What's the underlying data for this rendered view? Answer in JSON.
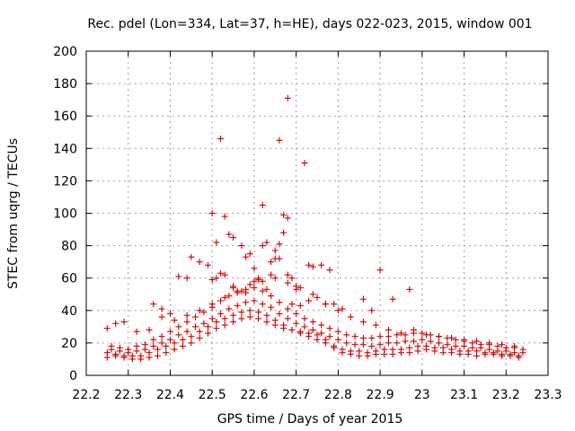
{
  "chart_data": {
    "type": "scatter",
    "title": "Rec. pdel (Lon=334, Lat=37, h=HE), days 022-023, 2015, window 001",
    "xlabel": "GPS time / Days of year 2015",
    "ylabel": "STEC from uqrg / TECUs",
    "xlim": [
      22.2,
      23.3
    ],
    "ylim": [
      0,
      200
    ],
    "xticks": [
      "22.2",
      "22.3",
      "22.4",
      "22.5",
      "22.6",
      "22.7",
      "22.8",
      "22.9",
      "23",
      "23.1",
      "23.2",
      "23.3"
    ],
    "yticks": [
      "0",
      "20",
      "40",
      "60",
      "80",
      "100",
      "120",
      "140",
      "160",
      "180",
      "200"
    ],
    "grid": true,
    "marker": "+",
    "color": "#cc0000",
    "series": [
      {
        "name": "STEC",
        "x": [
          22.25,
          22.27,
          22.29,
          22.31,
          22.33,
          22.35,
          22.37,
          22.39,
          22.41,
          22.43,
          22.45,
          22.47,
          22.49,
          22.51,
          22.53,
          22.55,
          22.57,
          22.59,
          22.61,
          22.63,
          22.65,
          22.67,
          22.69,
          22.71,
          22.73,
          22.75,
          22.77,
          22.79,
          22.81,
          22.83,
          22.85,
          22.87,
          22.89,
          22.91,
          22.93,
          22.95,
          22.97,
          22.99,
          23.01,
          23.03,
          23.05,
          23.07,
          23.09,
          23.11,
          23.13,
          23.15,
          23.17,
          23.19,
          23.21,
          23.23,
          22.25,
          22.27,
          22.29,
          22.31,
          22.33,
          22.35,
          22.37,
          22.39,
          22.41,
          22.43,
          22.45,
          22.47,
          22.49,
          22.51,
          22.53,
          22.55,
          22.57,
          22.59,
          22.61,
          22.63,
          22.65,
          22.67,
          22.69,
          22.71,
          22.73,
          22.75,
          22.77,
          22.79,
          22.81,
          22.83,
          22.85,
          22.87,
          22.89,
          22.91,
          22.93,
          22.95,
          22.97,
          22.99,
          23.01,
          23.03,
          23.05,
          23.07,
          23.09,
          23.11,
          23.13,
          23.15,
          23.17,
          23.19,
          23.21,
          23.23,
          22.26,
          22.28,
          22.3,
          22.32,
          22.34,
          22.36,
          22.38,
          22.4,
          22.42,
          22.44,
          22.46,
          22.48,
          22.5,
          22.52,
          22.54,
          22.56,
          22.58,
          22.6,
          22.62,
          22.64,
          22.66,
          22.68,
          22.7,
          22.72,
          22.74,
          22.76,
          22.78,
          22.8,
          22.82,
          22.84,
          22.86,
          22.88,
          22.9,
          22.92,
          22.94,
          22.96,
          22.98,
          23.0,
          23.02,
          23.04,
          23.06,
          23.08,
          23.1,
          23.12,
          23.14,
          23.16,
          23.18,
          23.2,
          23.22,
          23.24,
          22.26,
          22.28,
          22.3,
          22.32,
          22.34,
          22.36,
          22.38,
          22.4,
          22.42,
          22.44,
          22.46,
          22.48,
          22.5,
          22.52,
          22.54,
          22.56,
          22.58,
          22.6,
          22.62,
          22.64,
          22.66,
          22.68,
          22.7,
          22.72,
          22.74,
          22.76,
          22.78,
          22.8,
          22.82,
          22.84,
          22.86,
          22.88,
          22.9,
          22.92,
          22.94,
          22.96,
          22.98,
          23.0,
          23.02,
          23.04,
          23.06,
          23.08,
          23.1,
          23.12,
          23.14,
          23.16,
          23.18,
          23.2,
          23.22,
          23.24,
          22.25,
          22.27,
          22.29,
          22.32,
          22.35,
          22.38,
          22.41,
          22.44,
          22.47,
          22.5,
          22.53,
          22.56,
          22.59,
          22.62,
          22.65,
          22.68,
          22.71,
          22.74,
          22.77,
          22.8,
          22.83,
          22.86,
          22.89,
          22.92,
          22.95,
          22.98,
          23.01,
          23.04,
          23.07,
          23.1,
          23.13,
          23.16,
          23.19,
          23.22,
          22.52,
          22.53,
          22.55,
          22.58,
          22.6,
          22.62,
          22.64,
          22.65,
          22.66,
          22.67,
          22.68,
          22.69,
          22.7,
          22.72,
          22.74,
          22.76,
          22.78,
          22.5,
          22.51,
          22.54,
          22.57,
          22.59,
          22.61,
          22.63,
          22.66,
          22.68,
          22.7,
          22.45,
          22.47,
          22.49,
          22.42,
          22.44,
          22.9,
          22.93,
          22.97,
          22.86,
          22.88,
          22.36,
          22.38,
          22.4,
          22.53,
          22.62,
          22.66,
          22.68,
          22.73,
          22.51,
          22.61,
          22.65,
          22.67,
          22.5,
          22.52,
          22.55,
          22.58,
          22.63,
          22.69,
          22.75,
          22.77,
          22.79,
          22.81,
          22.55,
          22.57,
          22.6,
          22.64,
          22.71,
          22.73
        ],
        "y": [
          11,
          12,
          11,
          10,
          10,
          11,
          12,
          14,
          16,
          18,
          20,
          23,
          26,
          29,
          31,
          33,
          35,
          36,
          35,
          33,
          31,
          29,
          28,
          27,
          26,
          25,
          22,
          18,
          14,
          13,
          12,
          12,
          13,
          13,
          13,
          14,
          14,
          15,
          16,
          15,
          14,
          14,
          13,
          13,
          12,
          13,
          13,
          12,
          12,
          11,
          14,
          13,
          12,
          12,
          12,
          14,
          16,
          18,
          20,
          22,
          24,
          27,
          30,
          33,
          35,
          37,
          39,
          40,
          39,
          37,
          34,
          31,
          28,
          26,
          24,
          22,
          20,
          17,
          16,
          15,
          15,
          14,
          15,
          16,
          16,
          16,
          17,
          18,
          18,
          17,
          17,
          16,
          15,
          15,
          15,
          14,
          14,
          13,
          13,
          12,
          16,
          15,
          14,
          15,
          16,
          18,
          20,
          22,
          25,
          27,
          30,
          32,
          35,
          38,
          41,
          43,
          45,
          46,
          44,
          42,
          38,
          35,
          32,
          30,
          28,
          26,
          24,
          22,
          20,
          19,
          19,
          18,
          19,
          20,
          20,
          21,
          21,
          22,
          21,
          20,
          19,
          18,
          18,
          17,
          17,
          16,
          15,
          15,
          14,
          14,
          18,
          17,
          16,
          18,
          19,
          22,
          24,
          27,
          30,
          33,
          36,
          39,
          42,
          46,
          49,
          51,
          53,
          54,
          52,
          49,
          45,
          41,
          38,
          35,
          33,
          31,
          29,
          27,
          25,
          24,
          23,
          23,
          24,
          24,
          25,
          25,
          26,
          26,
          25,
          24,
          23,
          22,
          21,
          20,
          19,
          19,
          18,
          17,
          17,
          16,
          29,
          32,
          33,
          27,
          28,
          36,
          34,
          37,
          40,
          44,
          48,
          52,
          56,
          58,
          60,
          57,
          54,
          50,
          44,
          40,
          36,
          33,
          31,
          28,
          26,
          28,
          25,
          24,
          23,
          22,
          21,
          20,
          19,
          18,
          146,
          62,
          85,
          73,
          66,
          105,
          70,
          72,
          145,
          99,
          171,
          60,
          53,
          131,
          67,
          68,
          65,
          100,
          82,
          87,
          80,
          75,
          60,
          82,
          81,
          97,
          55,
          73,
          70,
          68,
          61,
          60,
          65,
          47,
          53,
          47,
          40,
          44,
          41,
          38,
          98,
          80,
          72,
          62,
          68,
          60,
          59,
          77,
          88,
          59,
          63,
          54,
          51,
          53,
          44,
          48,
          44,
          44,
          41,
          55,
          52,
          58,
          62,
          43,
          46
        ]
      }
    ]
  }
}
